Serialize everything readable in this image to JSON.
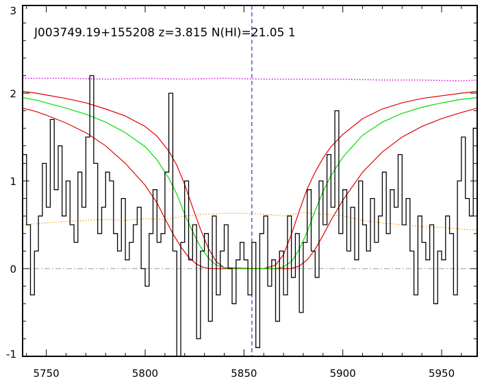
{
  "chart_data": {
    "type": "line",
    "title": "J003749.19+155208 z=3.815 N(HI)=21.05 1",
    "xlabel": "",
    "ylabel": "",
    "xlim": [
      5738,
      5968
    ],
    "ylim": [
      -1,
      3
    ],
    "xticks": [
      5750,
      5800,
      5850,
      5900,
      5950
    ],
    "xtick_labels": [
      "5750",
      "5800",
      "5850",
      "5900",
      "5950"
    ],
    "yticks": [
      -1,
      0,
      1,
      2,
      3
    ],
    "ytick_labels": [
      "-1",
      "0",
      "1",
      "2",
      "3"
    ],
    "grid": false,
    "colors": {
      "spectrum": "#000000",
      "model": "#00dd00",
      "model_bounds": "#dd0000",
      "continuum": "#cc00cc",
      "error": "#ff9900",
      "zero_line": "#999999",
      "center_line": "#0000cc"
    },
    "center_wavelength": 5854,
    "zero_level": 0,
    "series": [
      {
        "style": "steps",
        "role": "spectrum",
        "x": [
          5738,
          5740,
          5742,
          5744,
          5746,
          5748,
          5750,
          5752,
          5754,
          5756,
          5758,
          5760,
          5762,
          5764,
          5766,
          5768,
          5770,
          5772,
          5774,
          5776,
          5778,
          5780,
          5782,
          5784,
          5786,
          5788,
          5790,
          5792,
          5794,
          5796,
          5798,
          5800,
          5802,
          5804,
          5806,
          5808,
          5810,
          5812,
          5814,
          5816,
          5818,
          5820,
          5822,
          5824,
          5826,
          5828,
          5830,
          5832,
          5834,
          5836,
          5838,
          5840,
          5842,
          5844,
          5846,
          5848,
          5850,
          5852,
          5854,
          5856,
          5858,
          5860,
          5862,
          5864,
          5866,
          5868,
          5870,
          5872,
          5874,
          5876,
          5878,
          5880,
          5882,
          5884,
          5886,
          5888,
          5890,
          5892,
          5894,
          5896,
          5898,
          5900,
          5902,
          5904,
          5906,
          5908,
          5910,
          5912,
          5914,
          5916,
          5918,
          5920,
          5922,
          5924,
          5926,
          5928,
          5930,
          5932,
          5934,
          5936,
          5938,
          5940,
          5942,
          5944,
          5946,
          5948,
          5950,
          5952,
          5954,
          5956,
          5958,
          5960,
          5962,
          5964,
          5966
        ],
        "y": [
          1.3,
          0.5,
          -0.3,
          0.2,
          0.6,
          1.2,
          0.7,
          1.7,
          0.9,
          1.4,
          0.6,
          1.0,
          0.5,
          0.3,
          1.1,
          0.7,
          1.5,
          2.2,
          1.2,
          0.4,
          0.7,
          1.1,
          1.0,
          0.4,
          0.2,
          0.8,
          0.1,
          0.3,
          0.5,
          0.7,
          0.0,
          -0.2,
          0.4,
          0.9,
          0.3,
          0.4,
          1.1,
          2.0,
          0.2,
          -1.0,
          0.3,
          1.0,
          0.1,
          0.5,
          -0.8,
          0.2,
          0.4,
          -0.6,
          0.6,
          -0.3,
          0.2,
          0.5,
          0.0,
          -0.4,
          0.1,
          0.3,
          0.1,
          -0.3,
          0.3,
          -0.9,
          0.4,
          0.6,
          -0.2,
          0.1,
          -0.6,
          0.2,
          -0.3,
          0.6,
          -0.1,
          0.4,
          -0.5,
          0.3,
          0.9,
          0.2,
          -0.1,
          1.0,
          0.5,
          1.3,
          0.7,
          1.8,
          0.4,
          0.9,
          0.2,
          0.7,
          0.1,
          1.0,
          0.5,
          0.2,
          0.8,
          0.3,
          0.6,
          1.1,
          0.4,
          0.9,
          0.7,
          1.3,
          0.5,
          0.8,
          0.2,
          -0.3,
          0.6,
          0.3,
          0.1,
          0.5,
          -0.4,
          0.2,
          0.1,
          0.6,
          0.4,
          -0.3,
          1.0,
          1.5,
          0.8,
          0.6,
          1.6
        ]
      },
      {
        "style": "line",
        "role": "model",
        "x": [
          5738,
          5745,
          5750,
          5760,
          5770,
          5780,
          5790,
          5800,
          5806,
          5812,
          5816,
          5820,
          5824,
          5828,
          5832,
          5836,
          5840,
          5844,
          5866,
          5870,
          5874,
          5878,
          5882,
          5886,
          5890,
          5894,
          5900,
          5910,
          5920,
          5930,
          5940,
          5950,
          5960,
          5968
        ],
        "y": [
          1.95,
          1.92,
          1.89,
          1.83,
          1.76,
          1.67,
          1.55,
          1.39,
          1.24,
          1.03,
          0.85,
          0.62,
          0.42,
          0.25,
          0.12,
          0.04,
          0.01,
          0.0,
          0.0,
          0.02,
          0.08,
          0.22,
          0.42,
          0.66,
          0.88,
          1.06,
          1.27,
          1.52,
          1.67,
          1.77,
          1.84,
          1.89,
          1.93,
          1.95
        ]
      },
      {
        "style": "line",
        "role": "model-upper",
        "x": [
          5738,
          5745,
          5750,
          5760,
          5770,
          5780,
          5790,
          5800,
          5806,
          5812,
          5816,
          5820,
          5824,
          5828,
          5832,
          5836,
          5840,
          5860,
          5866,
          5870,
          5874,
          5878,
          5882,
          5886,
          5890,
          5894,
          5900,
          5910,
          5920,
          5930,
          5940,
          5950,
          5960,
          5968
        ],
        "y": [
          2.02,
          2.0,
          1.98,
          1.94,
          1.89,
          1.82,
          1.74,
          1.62,
          1.51,
          1.34,
          1.18,
          0.96,
          0.7,
          0.45,
          0.23,
          0.08,
          0.01,
          0.0,
          0.04,
          0.16,
          0.39,
          0.66,
          0.91,
          1.1,
          1.26,
          1.39,
          1.53,
          1.71,
          1.82,
          1.89,
          1.94,
          1.97,
          2.0,
          2.02
        ]
      },
      {
        "style": "line",
        "role": "model-lower",
        "x": [
          5738,
          5745,
          5750,
          5760,
          5770,
          5780,
          5790,
          5800,
          5806,
          5810,
          5814,
          5818,
          5822,
          5826,
          5830,
          5834,
          5838,
          5874,
          5878,
          5882,
          5886,
          5890,
          5894,
          5900,
          5910,
          5920,
          5930,
          5940,
          5950,
          5960,
          5968
        ],
        "y": [
          1.83,
          1.79,
          1.75,
          1.66,
          1.55,
          1.4,
          1.2,
          0.95,
          0.75,
          0.57,
          0.4,
          0.25,
          0.13,
          0.05,
          0.01,
          0.0,
          0.0,
          0.0,
          0.03,
          0.1,
          0.22,
          0.38,
          0.55,
          0.78,
          1.1,
          1.33,
          1.5,
          1.62,
          1.71,
          1.78,
          1.83
        ]
      },
      {
        "style": "dotted",
        "role": "continuum",
        "x": [
          5738,
          5760,
          5780,
          5800,
          5820,
          5840,
          5860,
          5880,
          5900,
          5920,
          5940,
          5960,
          5968
        ],
        "y": [
          2.17,
          2.17,
          2.16,
          2.17,
          2.16,
          2.17,
          2.16,
          2.16,
          2.16,
          2.15,
          2.15,
          2.14,
          2.15
        ]
      },
      {
        "style": "dotted",
        "role": "error",
        "x": [
          5738,
          5750,
          5760,
          5770,
          5780,
          5790,
          5800,
          5810,
          5820,
          5830,
          5840,
          5850,
          5860,
          5870,
          5880,
          5890,
          5900,
          5910,
          5920,
          5930,
          5940,
          5950,
          5960,
          5968
        ],
        "y": [
          0.5,
          0.52,
          0.54,
          0.55,
          0.56,
          0.55,
          0.57,
          0.56,
          0.6,
          0.62,
          0.63,
          0.63,
          0.62,
          0.6,
          0.64,
          0.62,
          0.6,
          0.55,
          0.52,
          0.5,
          0.48,
          0.47,
          0.45,
          0.44
        ]
      }
    ]
  }
}
